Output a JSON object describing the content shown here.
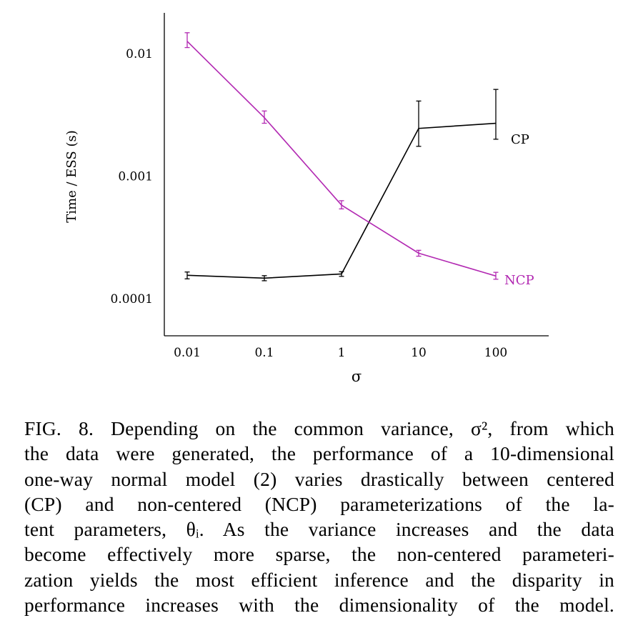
{
  "chart_data": {
    "type": "line",
    "xlabel": "σ",
    "ylabel": "Time / ESS (s)",
    "xscale": "log",
    "yscale": "log",
    "x_ticks": [
      "0.01",
      "0.1",
      "1",
      "10",
      "100"
    ],
    "x": [
      0.01,
      0.1,
      1,
      10,
      100
    ],
    "y_ticks": [
      "0.01",
      "0.001",
      "0.0001"
    ],
    "y_tick_values": [
      0.01,
      0.001,
      0.0001
    ],
    "ylim": [
      3.3e-05,
      0.021
    ],
    "grid": false,
    "series": [
      {
        "name": "CP",
        "color": "#000000",
        "values": [
          0.000155,
          0.000147,
          0.000159,
          0.00245,
          0.0027
        ],
        "err_low": [
          0.000145,
          0.00014,
          0.000152,
          0.00175,
          0.002
        ],
        "err_high": [
          0.000165,
          0.000154,
          0.000166,
          0.0041,
          0.0051
        ]
      },
      {
        "name": "NCP",
        "color": "#b229b2",
        "values": [
          0.0126,
          0.003,
          0.00058,
          0.000235,
          0.000153
        ],
        "err_low": [
          0.0112,
          0.0027,
          0.00054,
          0.000222,
          0.000144
        ],
        "err_high": [
          0.0148,
          0.0034,
          0.00063,
          0.000248,
          0.000164
        ]
      }
    ]
  },
  "caption": {
    "lines": [
      "FIG. 8. Depending on the common variance, σ², from which",
      "the data were generated, the performance of a 10-dimensional",
      "one-way normal model (2) varies drastically between centered",
      "(CP) and non-centered (NCP) parameterizations of the la-",
      "tent parameters, θᵢ. As the variance increases and the data",
      "become effectively more sparse, the non-centered parameteri-",
      "zation yields the most efficient inference and the disparity in",
      "performance increases with the dimensionality of the model."
    ]
  }
}
